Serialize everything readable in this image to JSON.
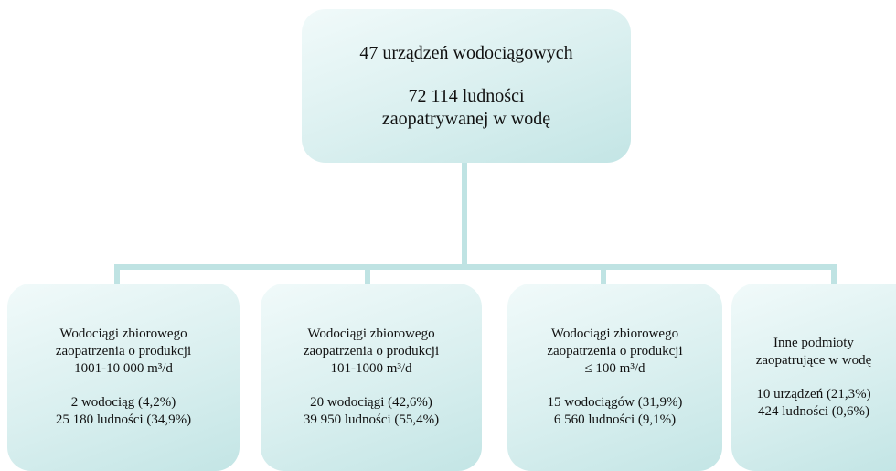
{
  "root": {
    "title_lines": [
      "47 urządzeń wodociągowych"
    ],
    "stats_lines": [
      "72 114 ludności",
      "zaopatrywanej w wodę"
    ]
  },
  "nodes": [
    {
      "title_lines": [
        "Wodociągi zbiorowego",
        "zaopatrzenia o produkcji",
        "1001-10 000 m³/d"
      ],
      "stats_lines": [
        "2 wodociąg (4,2%)",
        "25 180 ludności (34,9%)"
      ]
    },
    {
      "title_lines": [
        "Wodociągi zbiorowego",
        "zaopatrzenia o produkcji",
        "101-1000 m³/d"
      ],
      "stats_lines": [
        "20 wodociągi (42,6%)",
        "39 950 ludności (55,4%)"
      ]
    },
    {
      "title_lines": [
        "Wodociągi zbiorowego",
        "zaopatrzenia o produkcji",
        "≤ 100 m³/d"
      ],
      "stats_lines": [
        "15 wodociągów (31,9%)",
        "6 560 ludności (9,1%)"
      ]
    },
    {
      "title_lines": [
        "Inne podmioty",
        "zaopatrujące w wodę"
      ],
      "stats_lines": [
        "10 urządzeń (21,3%)",
        "424 ludności (0,6%)"
      ]
    }
  ]
}
